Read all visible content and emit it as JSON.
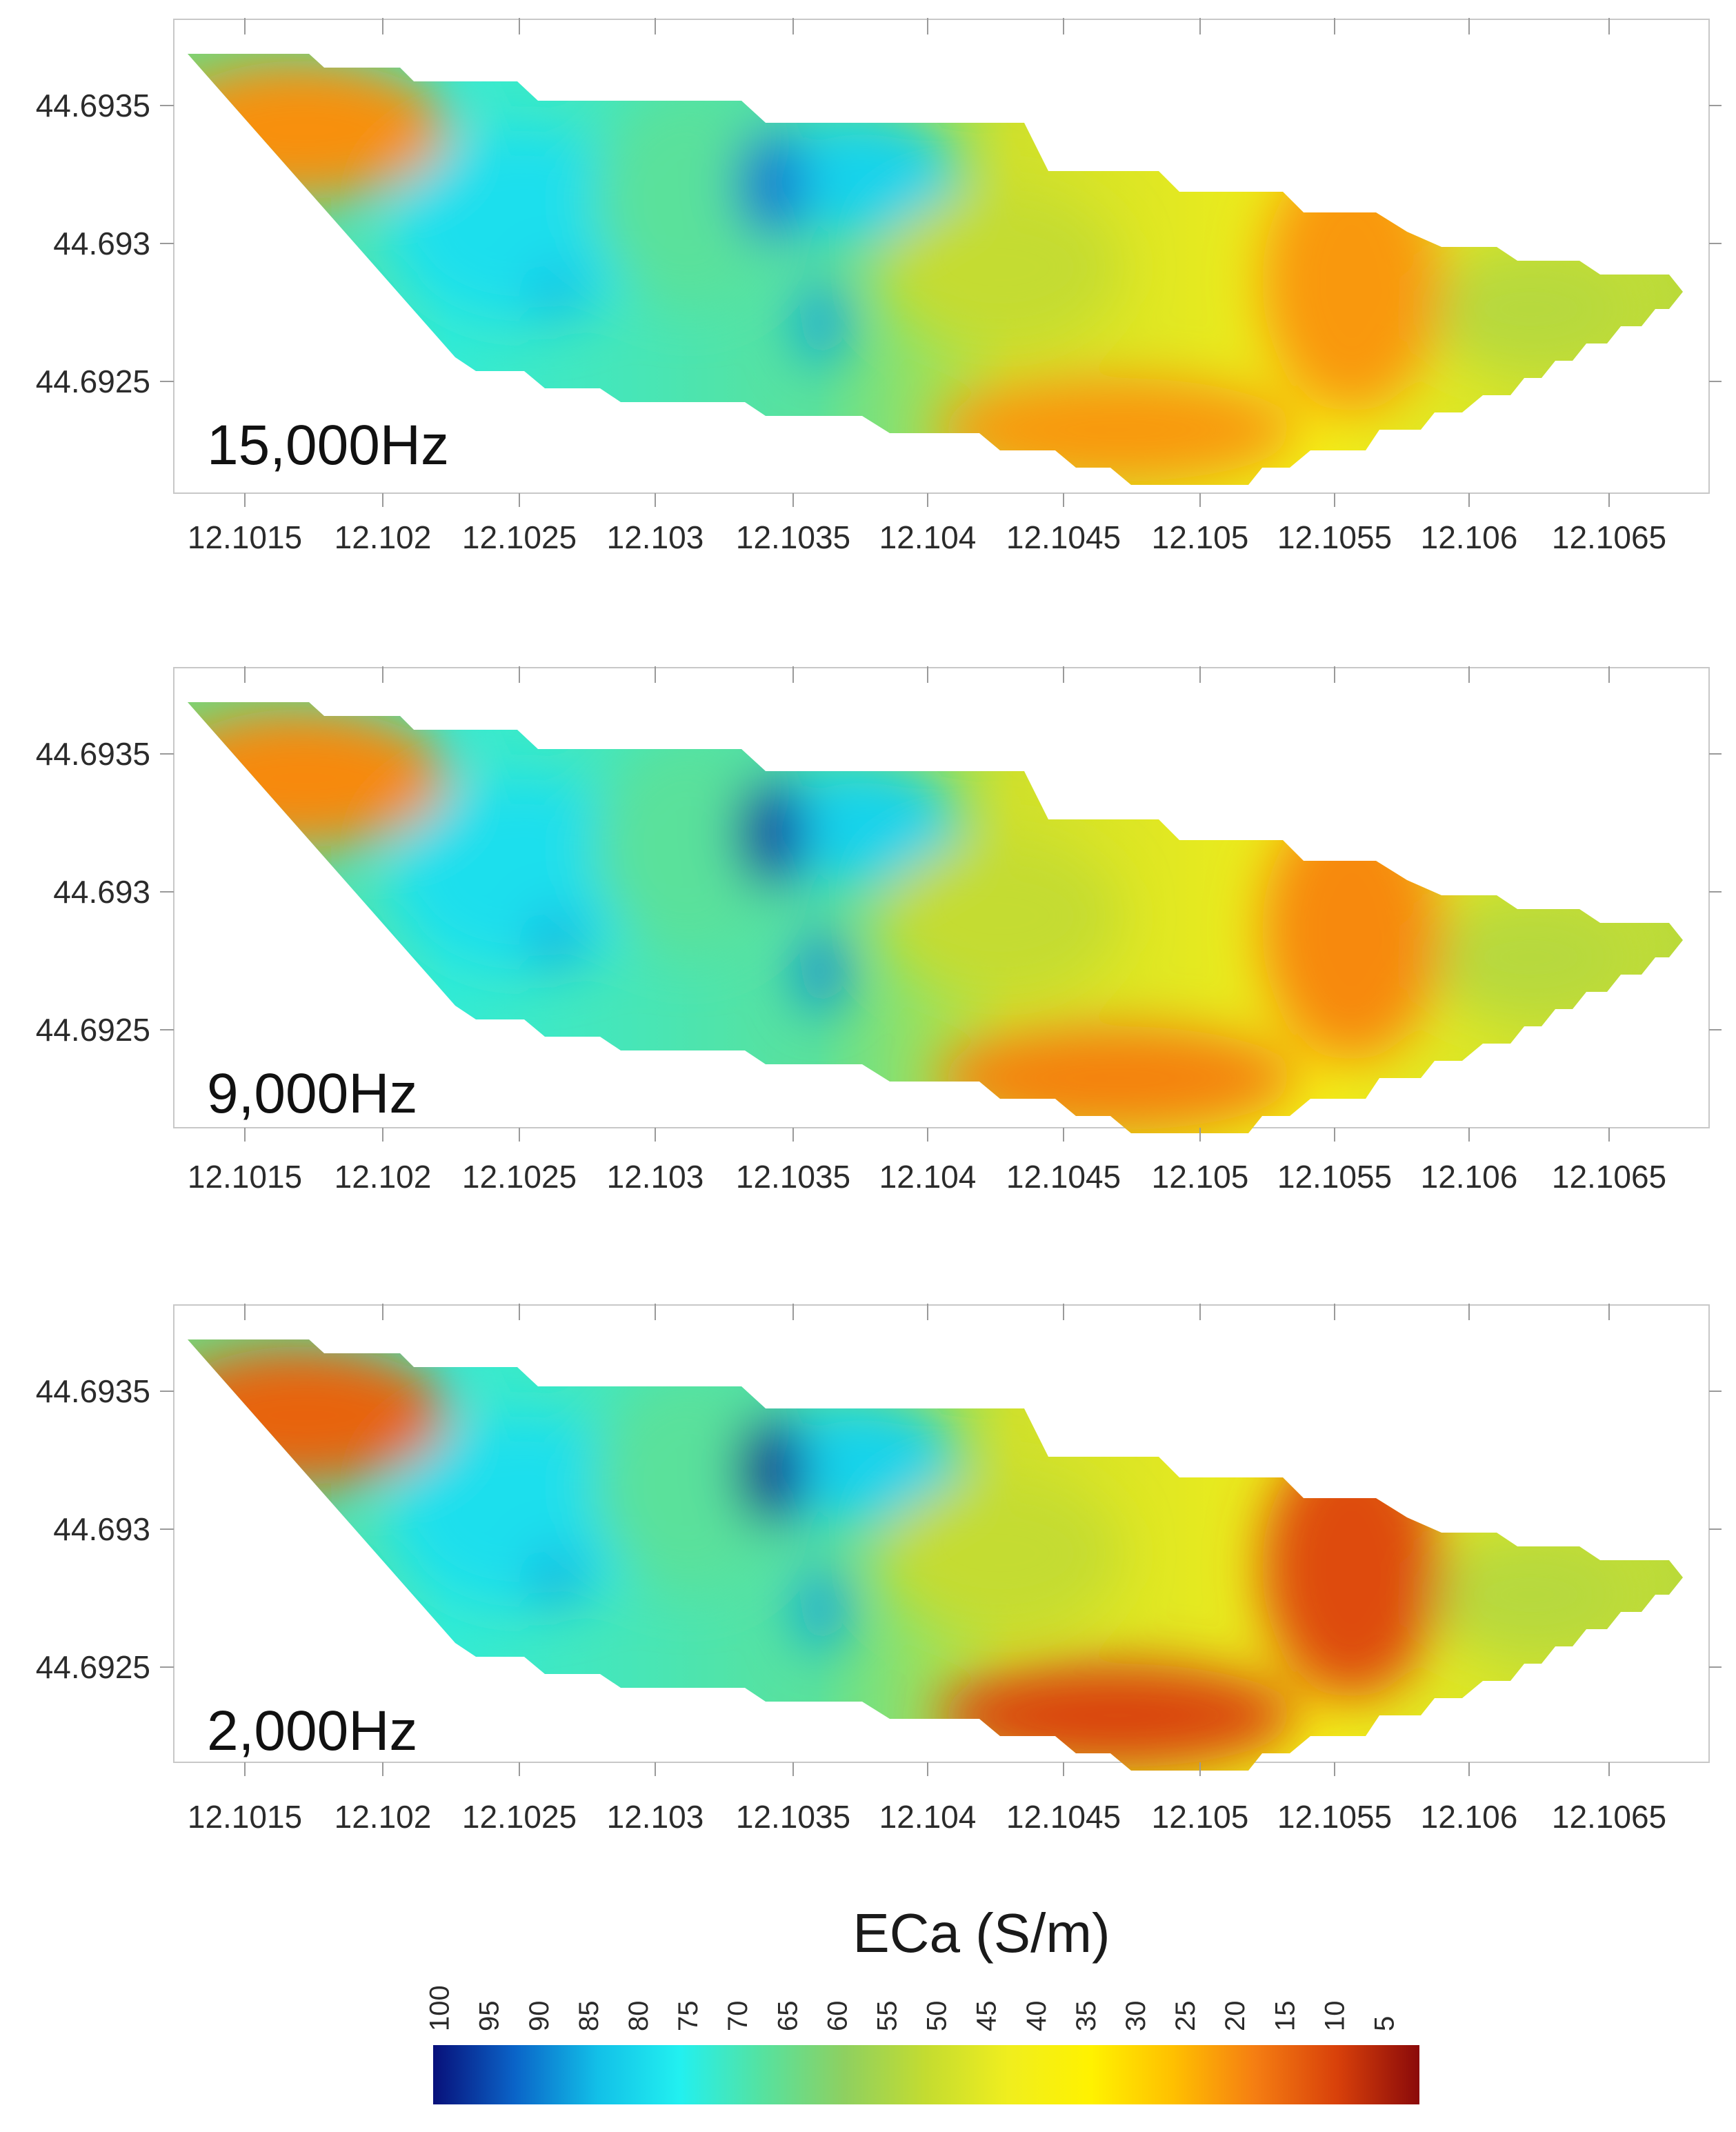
{
  "chart_data": {
    "type": "heatmap",
    "title": "",
    "colorbar": {
      "title": "ECa (S/m)",
      "ticks": [
        100,
        95,
        90,
        85,
        80,
        75,
        70,
        65,
        60,
        55,
        50,
        45,
        40,
        35,
        30,
        25,
        20,
        15,
        10,
        5
      ],
      "tick_labels": [
        "100",
        "95",
        "90",
        "85",
        "80",
        "75",
        "70",
        "65",
        "60",
        "55",
        "50",
        "45",
        "40",
        "35",
        "30",
        "25",
        "20",
        "15",
        "10",
        "5"
      ],
      "range": [
        0,
        100
      ],
      "reversed": true,
      "colors": [
        "#08107a",
        "#0a64c8",
        "#12c0e8",
        "#22f0f0",
        "#55e2a0",
        "#8ed060",
        "#c4dc30",
        "#f0ee1e",
        "#fff200",
        "#ffc000",
        "#f57e12",
        "#d8400a",
        "#8a0a0a"
      ]
    },
    "panels": [
      {
        "label": "15,000Hz",
        "x_ticks": [
          12.1015,
          12.102,
          12.1025,
          12.103,
          12.1035,
          12.104,
          12.1045,
          12.105,
          12.1055,
          12.106,
          12.1065
        ],
        "x_tick_labels": [
          "12.1015",
          "12.102",
          "12.1025",
          "12.103",
          "12.1035",
          "12.104",
          "12.1045",
          "12.105",
          "12.1055",
          "12.106",
          "12.1065"
        ],
        "y_ticks": [
          44.6935,
          44.693,
          44.6925
        ],
        "y_tick_labels": [
          "44.6935",
          "44.693",
          "44.6925"
        ],
        "xlim": [
          12.10125,
          12.1069
        ],
        "ylim": [
          44.6921,
          44.69375
        ],
        "zones": [
          {
            "cx": 12.10175,
            "cy": 44.69345,
            "rx": 0.00038,
            "ry": 0.00017,
            "eca": 19
          },
          {
            "cx": 12.10355,
            "cy": 44.69325,
            "rx": 0.0001,
            "ry": 0.00012,
            "eca": 90
          },
          {
            "cx": 12.10365,
            "cy": 44.69278,
            "rx": 7e-05,
            "ry": 0.0001,
            "eca": 86
          },
          {
            "cx": 12.10265,
            "cy": 44.69283,
            "rx": 6e-05,
            "ry": 8e-05,
            "eca": 85
          },
          {
            "cx": 12.1047,
            "cy": 44.6923,
            "rx": 0.00038,
            "ry": 0.00012,
            "eca": 20
          },
          {
            "cx": 12.10545,
            "cy": 44.6928,
            "rx": 0.0002,
            "ry": 0.0003,
            "eca": 20
          }
        ]
      },
      {
        "label": "9,000Hz",
        "x_ticks": [
          12.1015,
          12.102,
          12.1025,
          12.103,
          12.1035,
          12.104,
          12.1045,
          12.105,
          12.1055,
          12.106,
          12.1065
        ],
        "x_tick_labels": [
          "12.1015",
          "12.102",
          "12.1025",
          "12.103",
          "12.1035",
          "12.104",
          "12.1045",
          "12.105",
          "12.1055",
          "12.106",
          "12.1065"
        ],
        "y_ticks": [
          44.6935,
          44.693,
          44.6925
        ],
        "y_tick_labels": [
          "44.6935",
          "44.693",
          "44.6925"
        ],
        "xlim": [
          12.10125,
          12.1069
        ],
        "ylim": [
          44.6921,
          44.69375
        ],
        "zones": [
          {
            "cx": 12.10175,
            "cy": 44.69345,
            "rx": 0.00038,
            "ry": 0.00017,
            "eca": 18
          },
          {
            "cx": 12.1035,
            "cy": 44.69325,
            "rx": 0.00012,
            "ry": 0.00014,
            "eca": 96
          },
          {
            "cx": 12.10368,
            "cy": 44.69275,
            "rx": 8e-05,
            "ry": 0.00011,
            "eca": 88
          },
          {
            "cx": 12.10265,
            "cy": 44.69283,
            "rx": 6e-05,
            "ry": 8e-05,
            "eca": 87
          },
          {
            "cx": 12.1047,
            "cy": 44.69232,
            "rx": 0.0004,
            "ry": 0.00012,
            "eca": 17
          },
          {
            "cx": 12.10545,
            "cy": 44.6928,
            "rx": 0.0002,
            "ry": 0.0003,
            "eca": 18
          }
        ]
      },
      {
        "label": "2,000Hz",
        "x_ticks": [
          12.1015,
          12.102,
          12.1025,
          12.103,
          12.1035,
          12.104,
          12.1045,
          12.105,
          12.1055,
          12.106,
          12.1065
        ],
        "x_tick_labels": [
          "12.1015",
          "12.102",
          "12.1025",
          "12.103",
          "12.1035",
          "12.104",
          "12.1045",
          "12.105",
          "12.1055",
          "12.106",
          "12.1065"
        ],
        "y_ticks": [
          44.6935,
          44.693,
          44.6925
        ],
        "y_tick_labels": [
          "44.6935",
          "44.693",
          "44.6925"
        ],
        "xlim": [
          12.10125,
          12.1069
        ],
        "ylim": [
          44.6921,
          44.69375
        ],
        "zones": [
          {
            "cx": 12.10175,
            "cy": 44.69345,
            "rx": 0.00038,
            "ry": 0.00017,
            "eca": 13
          },
          {
            "cx": 12.10345,
            "cy": 44.69325,
            "rx": 0.00012,
            "ry": 0.00015,
            "eca": 98
          },
          {
            "cx": 12.10368,
            "cy": 44.69275,
            "rx": 7e-05,
            "ry": 9e-05,
            "eca": 86
          },
          {
            "cx": 12.10265,
            "cy": 44.69283,
            "rx": 6e-05,
            "ry": 8e-05,
            "eca": 87
          },
          {
            "cx": 12.1046,
            "cy": 44.69232,
            "rx": 0.00045,
            "ry": 0.00014,
            "eca": 9
          },
          {
            "cx": 12.1055,
            "cy": 44.69285,
            "rx": 0.00022,
            "ry": 0.0003,
            "eca": 10
          }
        ]
      }
    ]
  }
}
